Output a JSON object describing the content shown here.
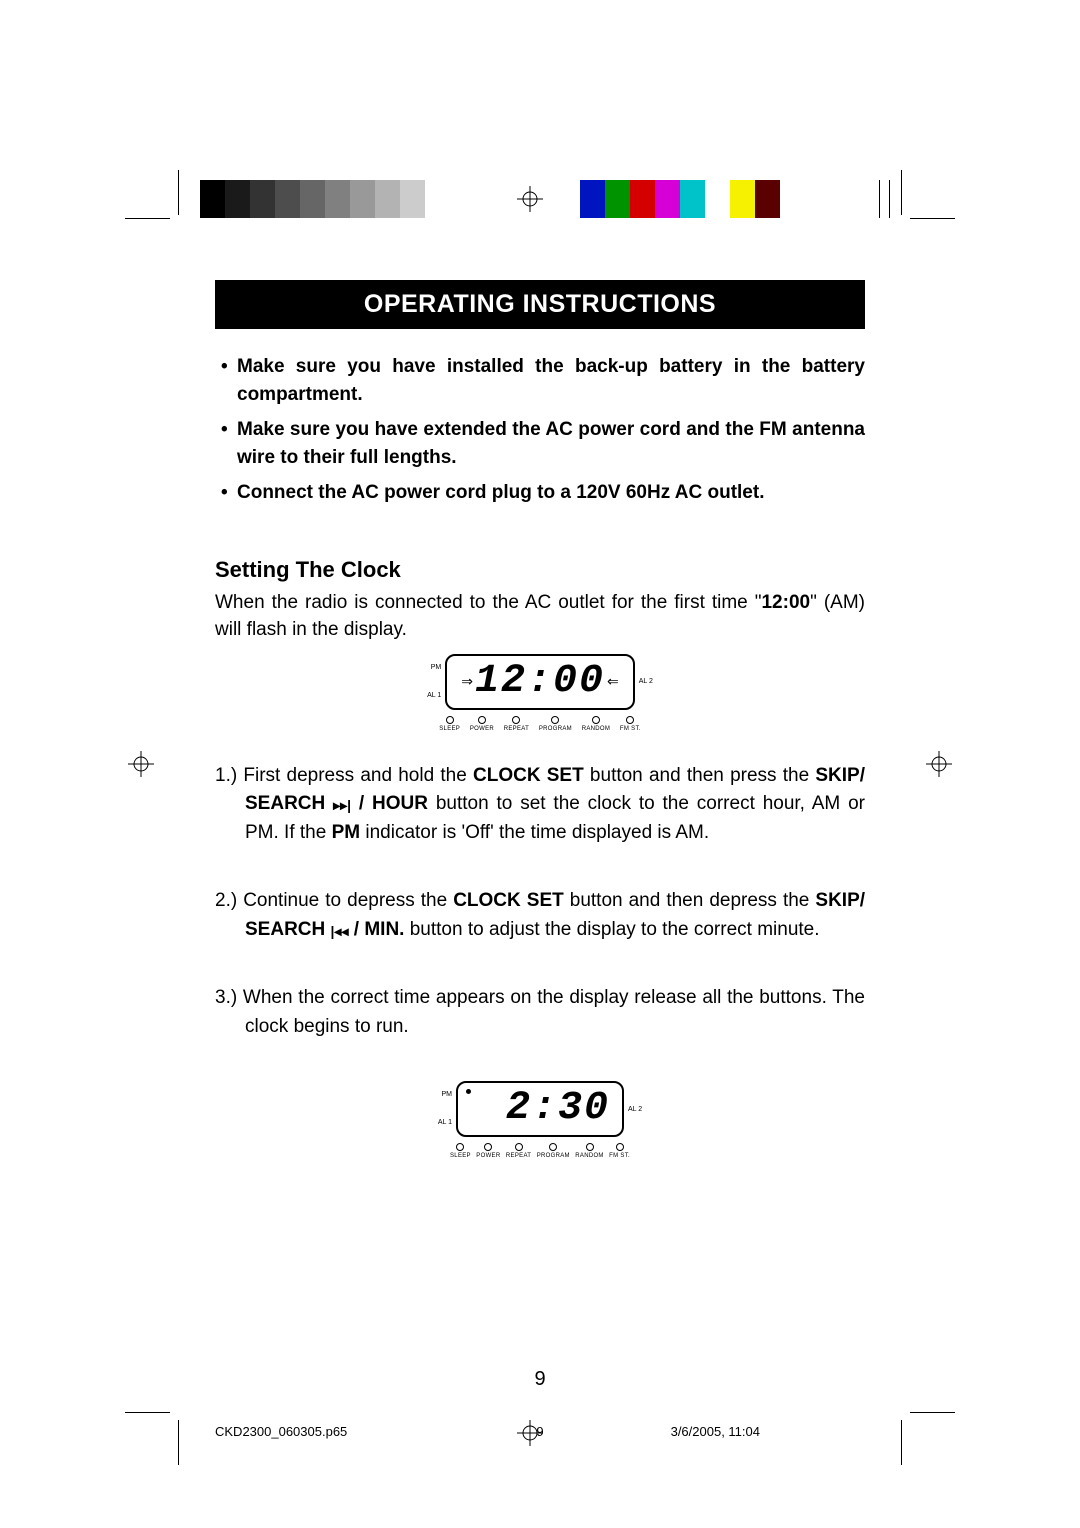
{
  "colorbar_left": [
    "#000000",
    "#1a1a1a",
    "#333333",
    "#4d4d4d",
    "#666666",
    "#808080",
    "#999999",
    "#b3b3b3",
    "#cccccc",
    "#ffffff"
  ],
  "colorbar_right": [
    "#0015bf",
    "#009300",
    "#d40000",
    "#d600d6",
    "#00c2c9",
    "#ffffff",
    "#f5f100",
    "#5b0000"
  ],
  "title": "OPERATING INSTRUCTIONS",
  "bullets": [
    "Make sure you have installed the back-up battery in the battery compartment.",
    "Make sure you have extended the AC power cord and the FM antenna wire to their full lengths.",
    "Connect the AC power cord plug to a 120V 60Hz AC outlet."
  ],
  "section_title": "Setting The Clock",
  "para_pre": "When the radio is connected to the AC outlet for the first time \"",
  "para_bold_time": "12:00",
  "para_post": "\" (AM) will flash in the display.",
  "lcd1": {
    "time": "12:00",
    "pm_label": "PM",
    "al1_label": "AL 1",
    "al2_label": "AL 2",
    "show_pm_dot": false,
    "flashing": true,
    "indicators": [
      "SLEEP",
      "POWER",
      "REPEAT",
      "PROGRAM",
      "RANDOM",
      "FM ST."
    ]
  },
  "steps": {
    "s1_a": "1.) First depress and hold the ",
    "s1_b1": "CLOCK SET",
    "s1_c": " button and then press the ",
    "s1_b2": "SKIP/ SEARCH ",
    "s1_icon": "▸▸|",
    "s1_b3": " / HOUR",
    "s1_d": " button to set the clock to the correct hour, AM or PM. If the ",
    "s1_b4": "PM",
    "s1_e": " indicator is 'Off' the time displayed is AM.",
    "s2_a": "2.) Continue to depress the ",
    "s2_b1": "CLOCK SET",
    "s2_c": " button and then depress the ",
    "s2_b2": "SKIP/ SEARCH ",
    "s2_icon": "|◂◂",
    "s2_b3": " / MIN.",
    "s2_d": " button to adjust the display to the correct minute.",
    "s3": "3.) When the correct time appears on the display release all the buttons. The clock begins to run."
  },
  "lcd2": {
    "time": "2:30",
    "pm_label": "PM",
    "al1_label": "AL 1",
    "al2_label": "AL 2",
    "show_pm_dot": true,
    "flashing": false,
    "indicators": [
      "SLEEP",
      "POWER",
      "REPEAT",
      "PROGRAM",
      "RANDOM",
      "FM ST."
    ]
  },
  "page_number": "9",
  "footer": {
    "filename": "CKD2300_060305.p65",
    "page": "9",
    "datetime": "3/6/2005, 11:04"
  }
}
